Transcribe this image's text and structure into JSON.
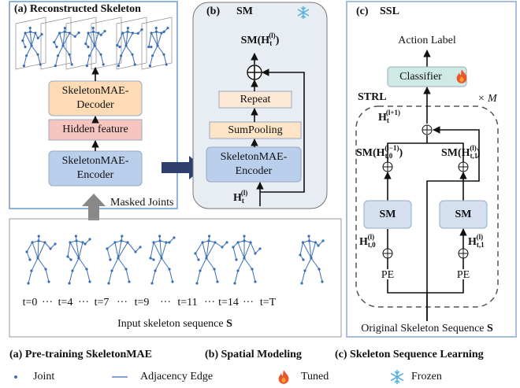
{
  "panel_a": {
    "title": "(a) Reconstructed Skeleton",
    "decoder": [
      "SkeletonMAE-",
      "Decoder"
    ],
    "hidden": "Hidden feature",
    "encoder": [
      "SkeletonMAE-",
      "Encoder"
    ],
    "masked": "Masked Joints"
  },
  "panel_b": {
    "label": "(b)",
    "title": "SM",
    "output": {
      "base": "SM(H",
      "sub": "t",
      "sup": "(l)",
      "close": ")"
    },
    "repeat": "Repeat",
    "pooling": "SumPooling",
    "encoder": [
      "SkeletonMAE-",
      "Encoder"
    ],
    "input": {
      "base": "H",
      "sub": "t",
      "sup": "(l)"
    }
  },
  "panel_c": {
    "label": "(c)",
    "title": "SSL",
    "action": "Action Label",
    "classifier": "Classifier",
    "strl": "STRL",
    "repeat": "× M",
    "next": {
      "base": "H",
      "sub": "t",
      "sup": "(l+1)"
    },
    "left_sm": {
      "base": "SM(H",
      "sub": "t,0",
      "sup": "(l−1)",
      "close": ")"
    },
    "right_sm": {
      "base": "SM(H",
      "sub": "t,1",
      "sup": "(l)",
      "close": ")"
    },
    "sm_boxes": [
      "SM",
      "SM"
    ],
    "left_in": {
      "base": "H",
      "sub": "t,0",
      "sup": "(l)"
    },
    "right_in": {
      "base": "H",
      "sub": "t,1",
      "sup": "(l)"
    },
    "pe": [
      "PE",
      "PE"
    ],
    "caption": {
      "text": "Original Skeleton Sequence ",
      "symbol": "S"
    }
  },
  "sequence": {
    "frames": [
      "t=0",
      "···",
      "t=4",
      "···",
      "t=7",
      "···",
      "t=9",
      "···",
      "t=11",
      "···",
      "t=14",
      "···",
      "t=T"
    ],
    "caption": {
      "text": "Input skeleton sequence ",
      "symbol": "S"
    }
  },
  "captions": [
    "(a) Pre-training SkeletonMAE",
    "(b) Spatial Modeling",
    "(c) Skeleton Sequence Learning"
  ],
  "legend": [
    "Joint",
    "Adjacency Edge",
    "Tuned",
    "Frozen"
  ]
}
